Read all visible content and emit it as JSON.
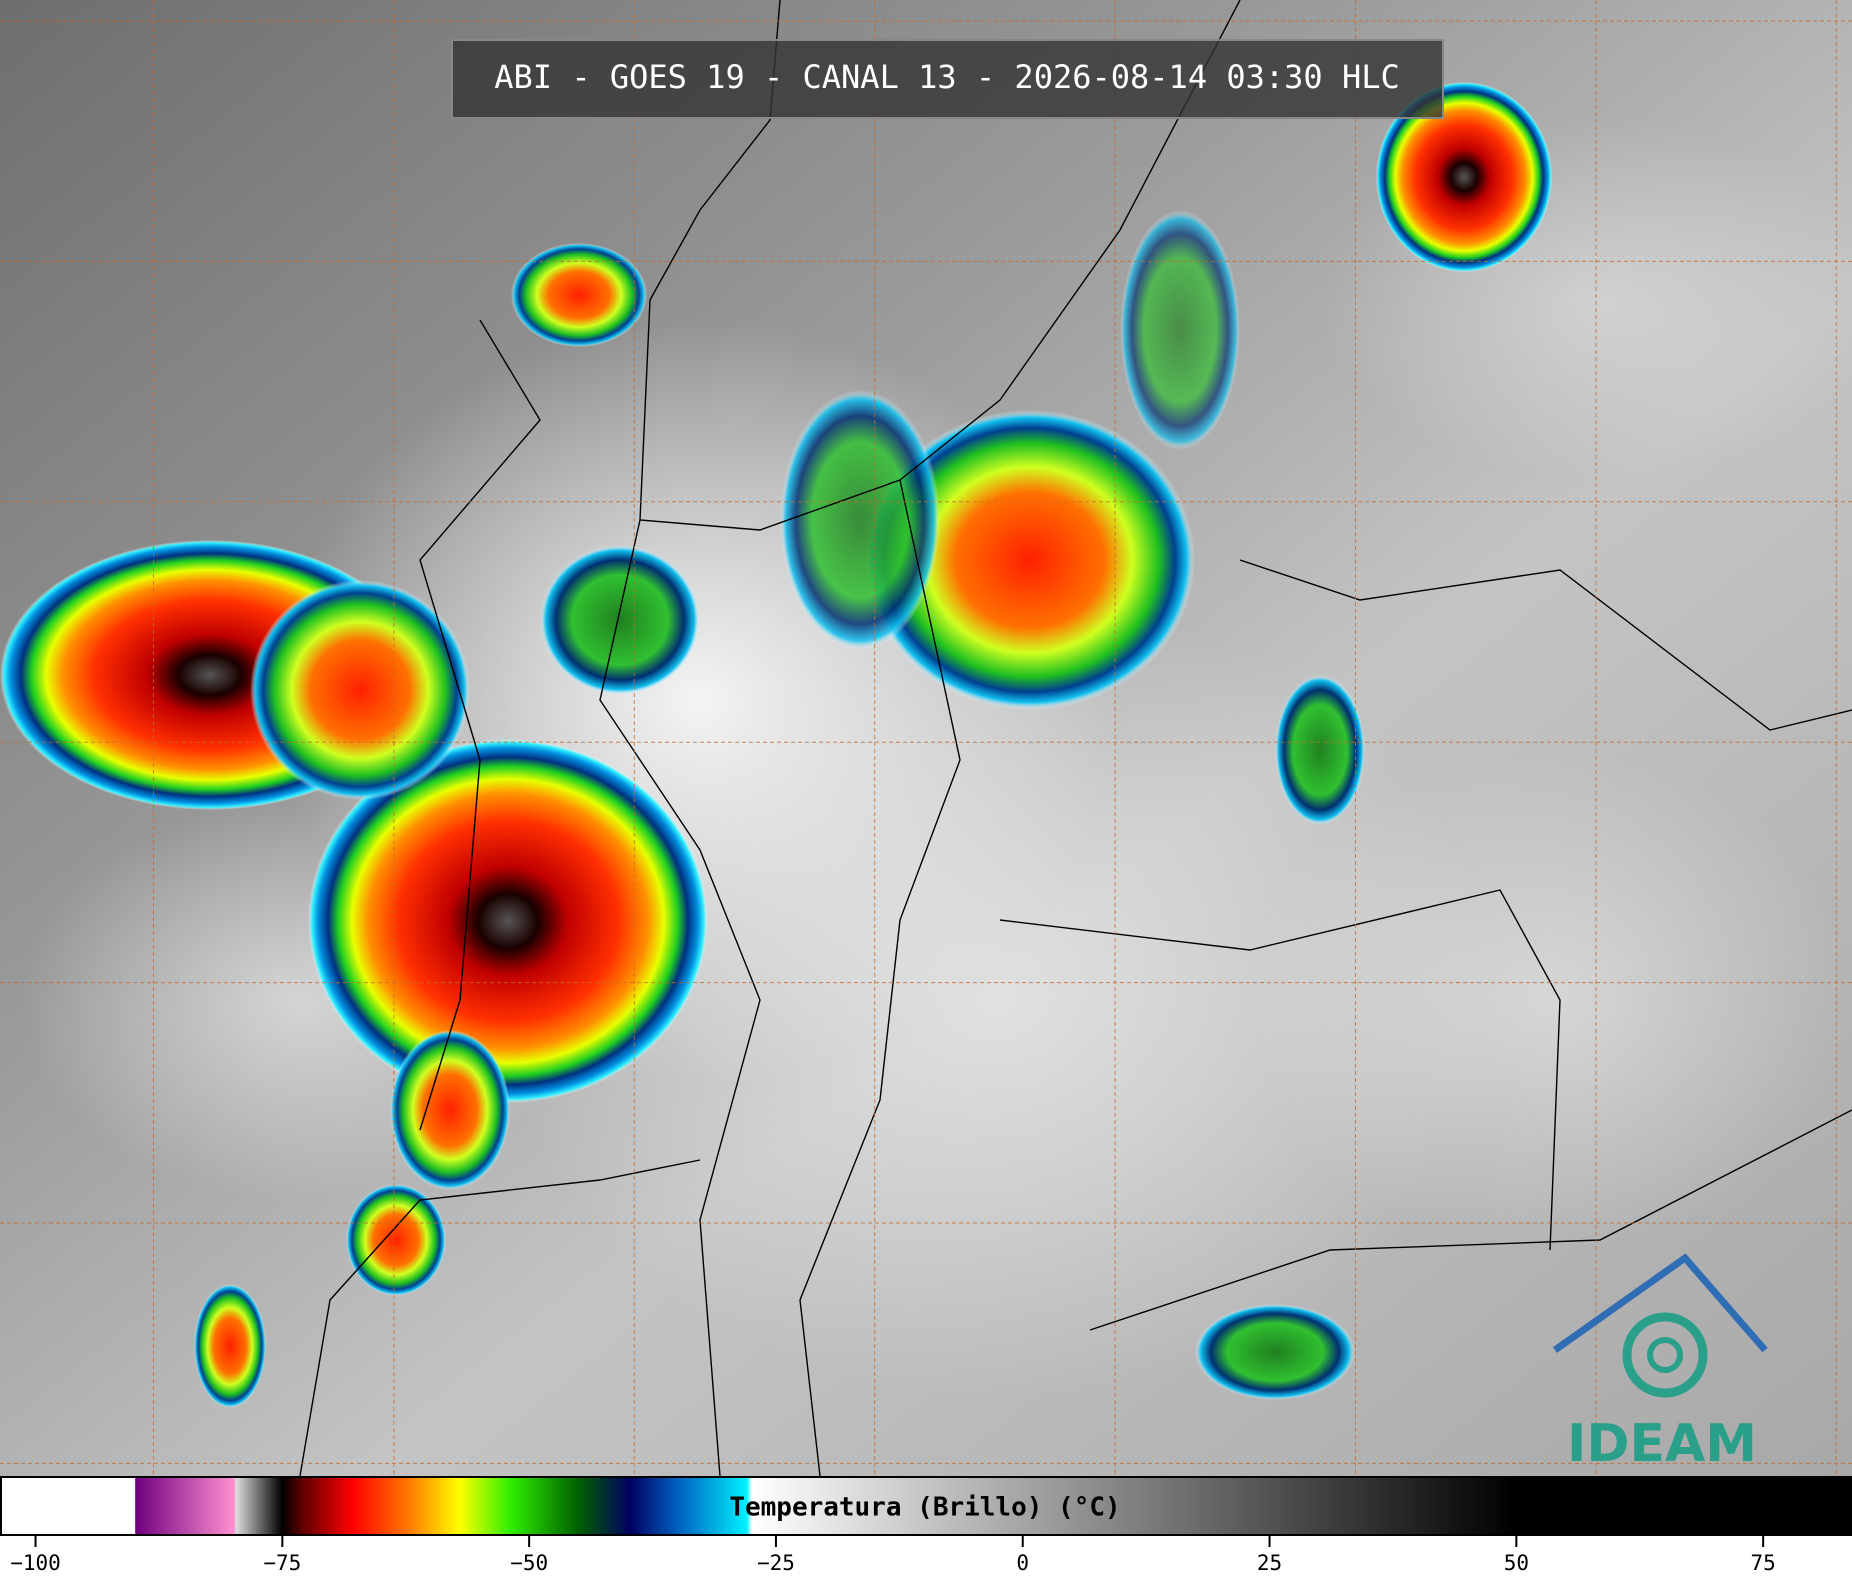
{
  "header": {
    "title": "ABI - GOES 19 - CANAL 13 - 2026-08-14 03:30 HLC"
  },
  "logo": {
    "text": "IDEAM"
  },
  "colorbar": {
    "label": "Temperatura (Brillo) (°C)",
    "lim": [
      -103.6,
      84
    ],
    "ticks": [
      {
        "value": -100,
        "label": "−100"
      },
      {
        "value": -75,
        "label": "−75"
      },
      {
        "value": -50,
        "label": "−50"
      },
      {
        "value": -25,
        "label": "−25"
      },
      0,
      25,
      50,
      75
    ]
  }
}
